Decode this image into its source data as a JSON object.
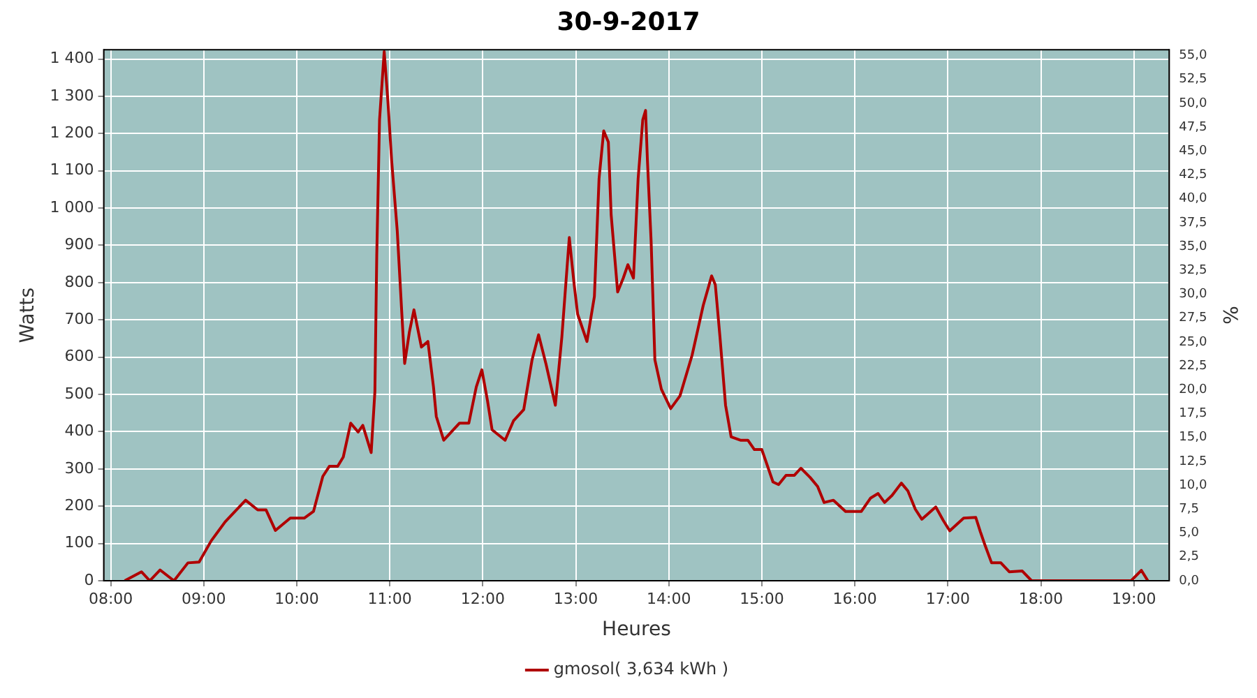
{
  "chart_data": {
    "type": "line",
    "title": "30-9-2017",
    "xlabel": "Heures",
    "ylabel": "Watts",
    "y2label": "%",
    "x": [
      8.15,
      8.33,
      8.42,
      8.53,
      8.68,
      8.83,
      8.95,
      9.08,
      9.23,
      9.45,
      9.58,
      9.67,
      9.77,
      9.93,
      10.08,
      10.18,
      10.28,
      10.35,
      10.44,
      10.5,
      10.58,
      10.66,
      10.71,
      10.8,
      10.84,
      10.86,
      10.89,
      10.94,
      10.98,
      11.02,
      11.08,
      11.13,
      11.16,
      11.21,
      11.26,
      11.34,
      11.41,
      11.47,
      11.5,
      11.58,
      11.75,
      11.85,
      11.93,
      11.99,
      12.05,
      12.1,
      12.24,
      12.33,
      12.44,
      12.53,
      12.6,
      12.68,
      12.78,
      12.85,
      12.89,
      12.93,
      12.98,
      13.02,
      13.12,
      13.2,
      13.25,
      13.3,
      13.35,
      13.38,
      13.45,
      13.51,
      13.56,
      13.62,
      13.67,
      13.72,
      13.75,
      13.77,
      13.81,
      13.85,
      13.92,
      14.02,
      14.12,
      14.25,
      14.37,
      14.46,
      14.5,
      14.55,
      14.61,
      14.67,
      14.77,
      14.85,
      14.92,
      15.0,
      15.12,
      15.18,
      15.26,
      15.35,
      15.42,
      15.52,
      15.6,
      15.67,
      15.77,
      15.9,
      16.07,
      16.17,
      16.25,
      16.32,
      16.4,
      16.5,
      16.57,
      16.65,
      16.72,
      16.87,
      16.95,
      17.02,
      17.17,
      17.3,
      17.35,
      17.4,
      17.47,
      17.57,
      17.66,
      17.8,
      17.9,
      18.97,
      19.08,
      19.15
    ],
    "series": [
      {
        "name": "gmosol( 3,634 kWh )",
        "color": "#b00000",
        "values": [
          0,
          24,
          0,
          29,
          0,
          48,
          50,
          107,
          158,
          216,
          190,
          190,
          135,
          168,
          168,
          186,
          280,
          307,
          307,
          332,
          423,
          399,
          417,
          344,
          508,
          873,
          1237,
          1420,
          1286,
          1128,
          940,
          715,
          583,
          666,
          727,
          627,
          642,
          520,
          441,
          377,
          423,
          423,
          520,
          566,
          484,
          405,
          377,
          429,
          459,
          593,
          660,
          581,
          471,
          654,
          788,
          921,
          800,
          715,
          642,
          763,
          1079,
          1207,
          1177,
          982,
          775,
          812,
          848,
          812,
          1079,
          1237,
          1262,
          1128,
          909,
          593,
          514,
          462,
          496,
          605,
          739,
          818,
          794,
          654,
          471,
          386,
          377,
          377,
          352,
          352,
          265,
          258,
          283,
          283,
          302,
          277,
          253,
          210,
          216,
          186,
          186,
          222,
          234,
          210,
          229,
          262,
          241,
          192,
          165,
          198,
          162,
          134,
          168,
          170,
          131,
          95,
          48,
          48,
          24,
          26,
          0,
          0,
          28,
          0
        ]
      }
    ],
    "xlim": [
      7.925,
      19.38
    ],
    "xticks": [
      {
        "value": 8,
        "label": "08:00"
      },
      {
        "value": 9,
        "label": "09:00"
      },
      {
        "value": 10,
        "label": "10:00"
      },
      {
        "value": 11,
        "label": "11:00"
      },
      {
        "value": 12,
        "label": "12:00"
      },
      {
        "value": 13,
        "label": "13:00"
      },
      {
        "value": 14,
        "label": "14:00"
      },
      {
        "value": 15,
        "label": "15:00"
      },
      {
        "value": 16,
        "label": "16:00"
      },
      {
        "value": 17,
        "label": "17:00"
      },
      {
        "value": 18,
        "label": "18:00"
      },
      {
        "value": 19,
        "label": "19:00"
      }
    ],
    "ylim": [
      0,
      1425
    ],
    "yticks": [
      0,
      100,
      200,
      300,
      400,
      500,
      600,
      700,
      800,
      900,
      {
        "value": 1000,
        "label": "1 000"
      },
      {
        "value": 1100,
        "label": "1 100"
      },
      {
        "value": 1200,
        "label": "1 200"
      },
      {
        "value": 1300,
        "label": "1 300"
      },
      {
        "value": 1400,
        "label": "1 400"
      }
    ],
    "y2lim": [
      0,
      55.6
    ],
    "y2ticks": [
      {
        "value": 0,
        "label": "0,0"
      },
      {
        "value": 2.5,
        "label": "2,5"
      },
      {
        "value": 5,
        "label": "5,0"
      },
      {
        "value": 7.5,
        "label": "7,5"
      },
      {
        "value": 10,
        "label": "10,0"
      },
      {
        "value": 12.5,
        "label": "12,5"
      },
      {
        "value": 15,
        "label": "15,0"
      },
      {
        "value": 17.5,
        "label": "17,5"
      },
      {
        "value": 20,
        "label": "20,0"
      },
      {
        "value": 22.5,
        "label": "22,5"
      },
      {
        "value": 25,
        "label": "25,0"
      },
      {
        "value": 27.5,
        "label": "27,5"
      },
      {
        "value": 30,
        "label": "30,0"
      },
      {
        "value": 32.5,
        "label": "32,5"
      },
      {
        "value": 35,
        "label": "35,0"
      },
      {
        "value": 37.5,
        "label": "37,5"
      },
      {
        "value": 40,
        "label": "40,0"
      },
      {
        "value": 42.5,
        "label": "42,5"
      },
      {
        "value": 45,
        "label": "45,0"
      },
      {
        "value": 47.5,
        "label": "47,5"
      },
      {
        "value": 50,
        "label": "50,0"
      },
      {
        "value": 52.5,
        "label": "52,5"
      },
      {
        "value": 55,
        "label": "55,0"
      }
    ],
    "grid": true,
    "legend": "bottom",
    "marker": "none",
    "line_style": "solid"
  }
}
